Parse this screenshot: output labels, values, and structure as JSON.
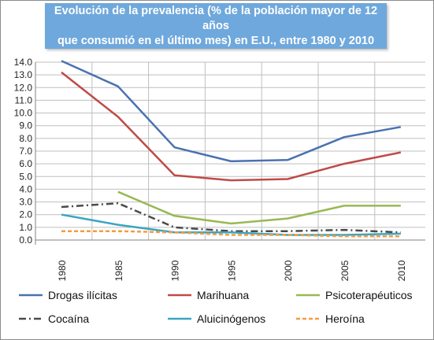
{
  "title_line1": "Evolución de la prevalencia (% de la población mayor de 12 años",
  "title_line2": "que consumió en el último mes) en E.U., entre 1980 y 2010",
  "chart_data": {
    "type": "line",
    "title": "Evolución de la prevalencia (% de la población mayor de 12 años que consumió en el último mes) en E.U., entre 1980 y 2010",
    "xlabel": "",
    "ylabel": "",
    "categories": [
      "1980",
      "1985",
      "1990",
      "1995",
      "2000",
      "2005",
      "2010"
    ],
    "ylim": [
      0,
      14
    ],
    "yticks": [
      "0.0",
      "1.0",
      "2.0",
      "3.0",
      "4.0",
      "5.0",
      "6.0",
      "7.0",
      "8.0",
      "9.0",
      "10.0",
      "11.0",
      "12.0",
      "13.0",
      "14.0"
    ],
    "grid": true,
    "legend_position": "bottom",
    "series": [
      {
        "name": "Drogas ilícitas",
        "color": "#4a72b0",
        "style": "solid",
        "values": [
          14.1,
          12.1,
          7.3,
          6.2,
          6.3,
          8.1,
          8.9
        ]
      },
      {
        "name": "Marihuana",
        "color": "#be4b48",
        "style": "solid",
        "values": [
          13.2,
          9.7,
          5.1,
          4.7,
          4.8,
          6.0,
          6.9
        ]
      },
      {
        "name": "Psicoterapéuticos",
        "color": "#98b954",
        "style": "solid",
        "values": [
          null,
          3.8,
          1.9,
          1.3,
          1.7,
          2.7,
          2.7
        ]
      },
      {
        "name": "Cocaína",
        "color": "#4a4a4a",
        "style": "dashdot",
        "values": [
          2.6,
          2.9,
          1.0,
          0.7,
          0.7,
          0.8,
          0.6
        ]
      },
      {
        "name": "Aluicinógenos",
        "color": "#3aa6c0",
        "style": "solid",
        "values": [
          2.0,
          1.2,
          0.6,
          0.6,
          0.4,
          0.4,
          0.5
        ]
      },
      {
        "name": "Heroína",
        "color": "#f59b42",
        "style": "dashed",
        "values": [
          0.7,
          0.7,
          0.6,
          0.4,
          0.4,
          0.3,
          0.3
        ]
      }
    ]
  }
}
